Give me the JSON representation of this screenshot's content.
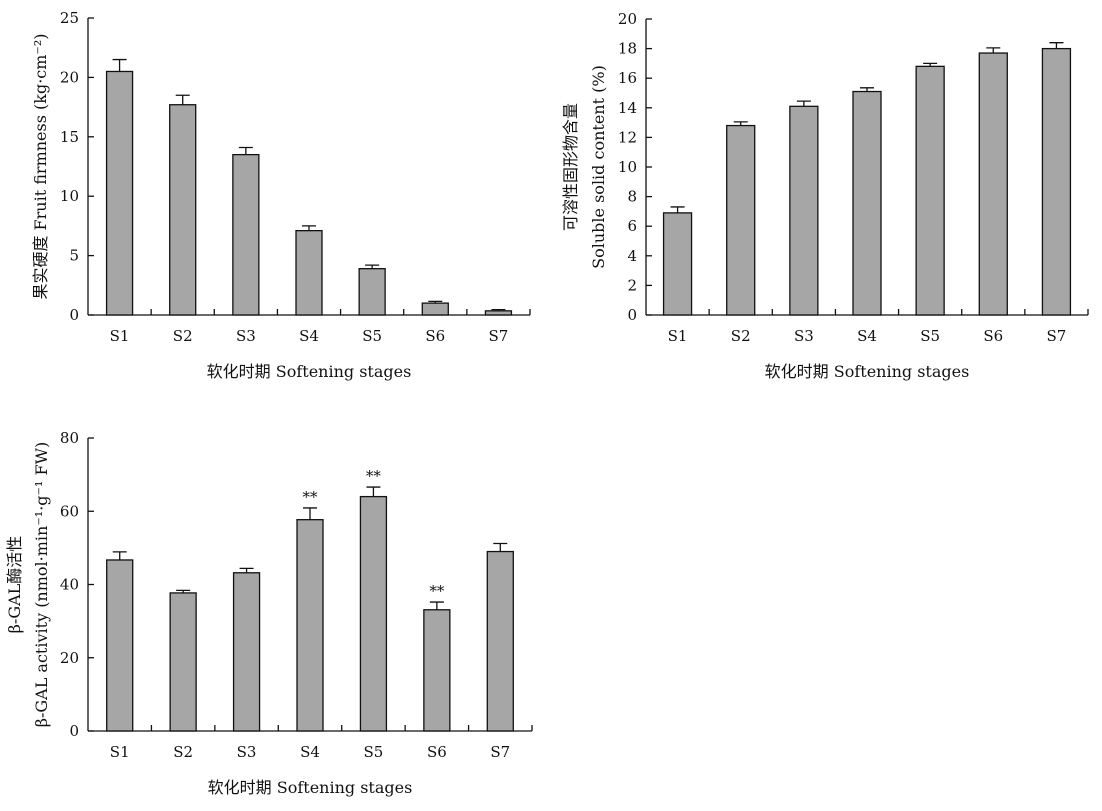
{
  "colors": {
    "bar_fill": "#a6a6a6",
    "axis": "#111111",
    "background": "#ffffff"
  },
  "chart_data": [
    {
      "id": "firmness",
      "type": "bar",
      "categories": [
        "S1",
        "S2",
        "S3",
        "S4",
        "S5",
        "S6",
        "S7"
      ],
      "values": [
        20.5,
        17.7,
        13.5,
        7.1,
        3.9,
        1.0,
        0.35
      ],
      "errors": [
        1.0,
        0.8,
        0.6,
        0.4,
        0.3,
        0.15,
        0.1
      ],
      "significance": [
        "",
        "",
        "",
        "",
        "",
        "",
        ""
      ],
      "ylim": [
        0,
        25
      ],
      "yticks": [
        0,
        5,
        10,
        15,
        20,
        25
      ],
      "ylabel": "果实硬度 Fruit firmness (kg·cm⁻²)",
      "xlabel": "软化时期 Softening stages"
    },
    {
      "id": "soluble_solids",
      "type": "bar",
      "categories": [
        "S1",
        "S2",
        "S3",
        "S4",
        "S5",
        "S6",
        "S7"
      ],
      "values": [
        6.9,
        12.8,
        14.1,
        15.1,
        16.8,
        17.7,
        18.0
      ],
      "errors": [
        0.4,
        0.25,
        0.35,
        0.25,
        0.2,
        0.35,
        0.4
      ],
      "significance": [
        "",
        "",
        "",
        "",
        "",
        "",
        ""
      ],
      "ylim": [
        0,
        20
      ],
      "yticks": [
        0,
        2,
        4,
        6,
        8,
        10,
        12,
        14,
        16,
        18,
        20
      ],
      "ylabel_lines": [
        "可溶性固形物含量",
        "Soluble solid content (%)"
      ],
      "xlabel": "软化时期 Softening stages"
    },
    {
      "id": "beta_gal",
      "type": "bar",
      "categories": [
        "S1",
        "S2",
        "S3",
        "S4",
        "S5",
        "S6",
        "S7"
      ],
      "values": [
        46.7,
        37.7,
        43.2,
        57.7,
        64.0,
        33.1,
        49.0
      ],
      "errors": [
        2.2,
        0.7,
        1.2,
        3.2,
        2.6,
        2.1,
        2.2
      ],
      "significance": [
        "",
        "",
        "",
        "**",
        "**",
        "**",
        ""
      ],
      "ylim": [
        0,
        80
      ],
      "yticks": [
        0,
        20,
        40,
        60,
        80
      ],
      "ylabel_lines": [
        "β-GAL酶活性",
        "β-GAL activity (nmol·min⁻¹·g⁻¹ FW)"
      ],
      "xlabel": "软化时期 Softening stages"
    }
  ]
}
